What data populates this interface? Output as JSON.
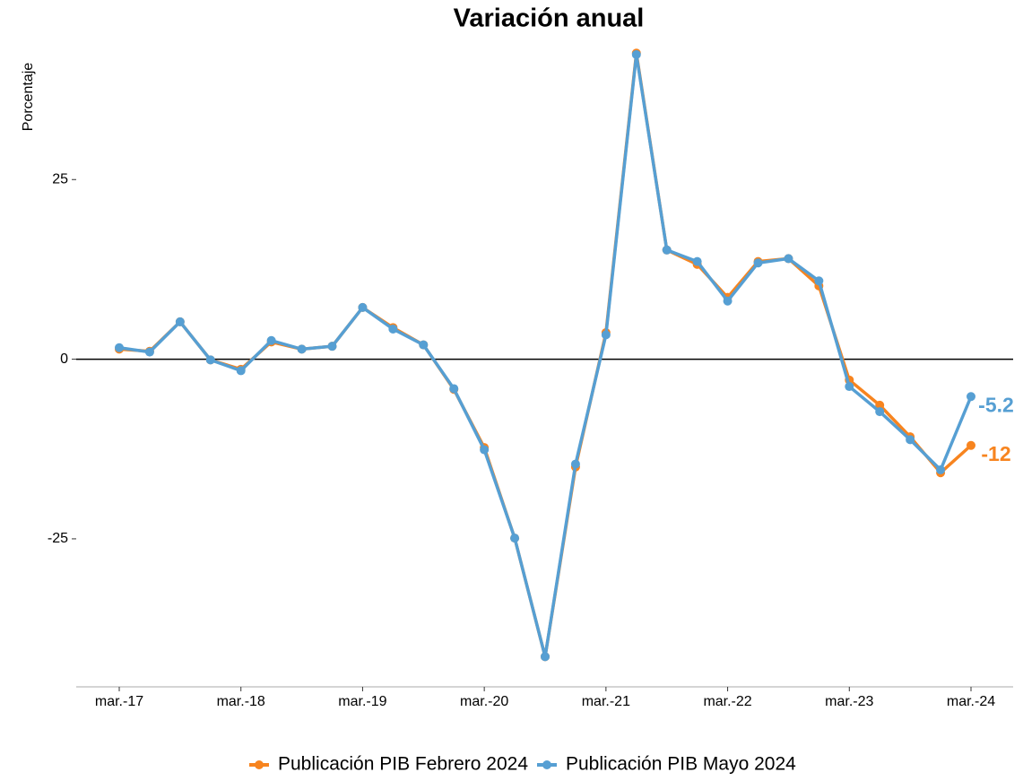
{
  "chart_data": {
    "type": "line",
    "title": "Variación anual",
    "y_label": "Porcentaje",
    "categories": [
      "mar.-17",
      null,
      null,
      null,
      "mar.-18",
      null,
      null,
      null,
      "mar.-19",
      null,
      null,
      null,
      "mar.-20",
      null,
      null,
      null,
      "mar.-21",
      null,
      null,
      null,
      "mar.-22",
      null,
      null,
      null,
      "mar.-23",
      null,
      null,
      null,
      "mar.-24"
    ],
    "series": [
      {
        "name": "Publicación PIB Febrero 2024",
        "color": "#f7841f",
        "values": [
          1.4,
          1.1,
          5.2,
          -0.1,
          -1.4,
          2.4,
          1.4,
          1.8,
          7.2,
          4.4,
          2.0,
          -4.2,
          -12.3,
          -24.9,
          -41.4,
          -15.0,
          3.7,
          42.6,
          15.2,
          13.2,
          8.6,
          13.6,
          14.0,
          10.2,
          -2.9,
          -6.4,
          -10.8,
          -15.8,
          -12
        ]
      },
      {
        "name": "Publicación PIB Mayo 2024",
        "color": "#569fd3",
        "values": [
          1.6,
          1.0,
          5.2,
          -0.1,
          -1.6,
          2.6,
          1.4,
          1.8,
          7.2,
          4.2,
          2.0,
          -4.1,
          -12.6,
          -24.9,
          -41.4,
          -14.6,
          3.4,
          42.4,
          15.2,
          13.6,
          8.1,
          13.4,
          14.0,
          10.9,
          -3.8,
          -7.3,
          -11.2,
          -15.4,
          -5.2
        ]
      }
    ],
    "ylim": [
      -45.6,
      45
    ],
    "yticks": [
      -25,
      0,
      25
    ],
    "zero_line": true,
    "grid": false,
    "label_last": true,
    "legend": "bottom"
  }
}
